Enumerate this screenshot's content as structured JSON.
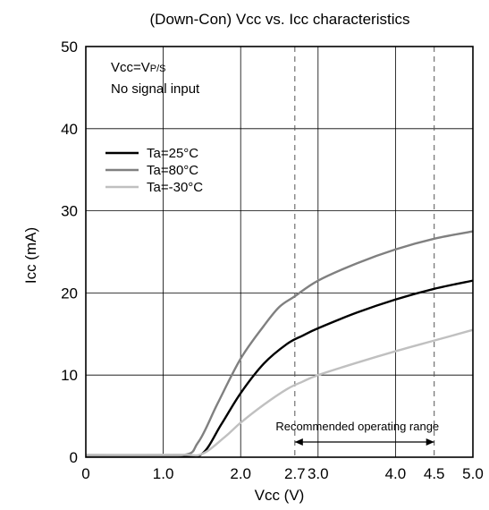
{
  "chart_data": {
    "type": "line",
    "title": "(Down-Con) Vcc vs. Icc characteristics",
    "xlabel": "Vcc (V)",
    "ylabel": "Icc  (mA)",
    "xlim": [
      0,
      5.0
    ],
    "ylim": [
      0,
      50
    ],
    "x_ticks": [
      {
        "value": 0,
        "label": "0"
      },
      {
        "value": 1.0,
        "label": "1.0"
      },
      {
        "value": 2.0,
        "label": "2.0"
      },
      {
        "value": 2.7,
        "label": "2.7"
      },
      {
        "value": 3.0,
        "label": "3.0"
      },
      {
        "value": 4.0,
        "label": "4.0"
      },
      {
        "value": 4.5,
        "label": "4.5"
      },
      {
        "value": 5.0,
        "label": "5.0"
      }
    ],
    "x_gridlines": [
      1.0,
      2.0,
      3.0,
      4.0
    ],
    "y_ticks": [
      0,
      10,
      20,
      30,
      40,
      50
    ],
    "grid": true,
    "dashed_markers": [
      2.7,
      4.5
    ],
    "conditions": [
      "Vcc=VP/S",
      "No signal input"
    ],
    "legend_position": "upper-left",
    "series": [
      {
        "name": "Ta=25°C",
        "color": "#000000",
        "x": [
          0,
          1.2,
          1.5,
          1.75,
          2.0,
          2.3,
          2.6,
          2.8,
          3.0,
          3.5,
          4.0,
          4.5,
          5.0
        ],
        "y": [
          0.2,
          0.2,
          0.4,
          4.0,
          7.8,
          11.4,
          13.8,
          14.8,
          15.7,
          17.6,
          19.2,
          20.5,
          21.5
        ]
      },
      {
        "name": "Ta=80°C",
        "color": "#808080",
        "x": [
          0,
          1.2,
          1.45,
          1.7,
          2.0,
          2.3,
          2.5,
          2.7,
          3.0,
          3.5,
          4.0,
          4.5,
          5.0
        ],
        "y": [
          0.2,
          0.2,
          1.8,
          6.5,
          12.0,
          16.0,
          18.3,
          19.6,
          21.5,
          23.6,
          25.3,
          26.6,
          27.5
        ]
      },
      {
        "name": "Ta=-30°C",
        "color": "#c0c0c0",
        "x": [
          0,
          1.2,
          1.5,
          1.8,
          2.0,
          2.3,
          2.6,
          2.8,
          3.0,
          3.5,
          4.0,
          4.5,
          5.0
        ],
        "y": [
          0.3,
          0.3,
          0.4,
          2.5,
          4.2,
          6.4,
          8.3,
          9.2,
          10.0,
          11.5,
          12.9,
          14.2,
          15.5
        ]
      }
    ],
    "annotation": {
      "text": "Recommended operating range",
      "from": 2.7,
      "to": 4.5
    }
  }
}
